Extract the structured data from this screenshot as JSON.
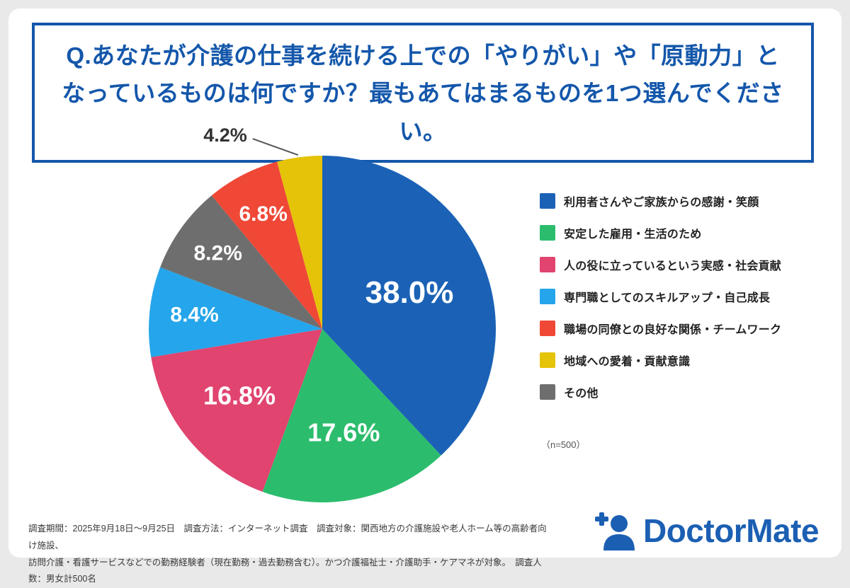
{
  "title": {
    "line1": "Q.あなたが介護の仕事を続ける上での「やりがい」や「原動力」と",
    "line2": "なっているものは何ですか？最もあてはまるものを1つ選んでください。"
  },
  "chart_data": {
    "type": "pie",
    "units": "%",
    "start_angle_deg": 0,
    "direction": "clockwise",
    "legend_position": "right",
    "sample_size": 500,
    "slices": [
      {
        "label": "利用者さんやご家族からの感謝・笑顔",
        "value": 38.0,
        "display": "38.0%",
        "color": "#1b62b6"
      },
      {
        "label": "安定した雇用・生活のため",
        "value": 17.6,
        "display": "17.6%",
        "color": "#2bbd6d"
      },
      {
        "label": "人の役に立っているという実感・社会貢献",
        "value": 16.8,
        "display": "16.8%",
        "color": "#e0446f"
      },
      {
        "label": "専門職としてのスキルアップ・自己成長",
        "value": 8.4,
        "display": "8.4%",
        "color": "#25a5eb"
      },
      {
        "label": "その他",
        "value": 8.2,
        "display": "8.2%",
        "color": "#6e6e6e"
      },
      {
        "label": "職場の同僚との良好な関係・チームワーク",
        "value": 6.8,
        "display": "6.8%",
        "color": "#ef4836"
      },
      {
        "label": "地域への愛着・貢献意識",
        "value": 4.2,
        "display": "4.2%",
        "color": "#e5c308"
      }
    ]
  },
  "legend": {
    "items": [
      {
        "label": "利用者さんやご家族からの感謝・笑顔",
        "color": "#1b62b6"
      },
      {
        "label": "安定した雇用・生活のため",
        "color": "#2bbd6d"
      },
      {
        "label": "人の役に立っているという実感・社会貢献",
        "color": "#e0446f"
      },
      {
        "label": "専門職としてのスキルアップ・自己成長",
        "color": "#25a5eb"
      },
      {
        "label": "職場の同僚との良好な関係・チームワーク",
        "color": "#ef4836"
      },
      {
        "label": "地域への愛着・貢献意識",
        "color": "#e5c308"
      },
      {
        "label": "その他",
        "color": "#6e6e6e"
      }
    ],
    "note": "（n=500）"
  },
  "footnote": {
    "line1": "調査期間：2025年9月18日～9月25日　調査方法：インターネット調査　調査対象：関西地方の介護施設や老人ホーム等の高齢者向け施設、",
    "line2": "訪問介護・看護サービスなどでの勤務経験者（現在勤務・過去勤務含む）。かつ介護福祉士・介護助手・ケアマネが対象。　調査人数：男女計500名"
  },
  "logo": {
    "text": "DoctorMate",
    "color": "#1b5fb3"
  },
  "colors": {
    "title_blue": "#1457ab",
    "background": "#e9e9e9",
    "card": "#ffffff"
  }
}
